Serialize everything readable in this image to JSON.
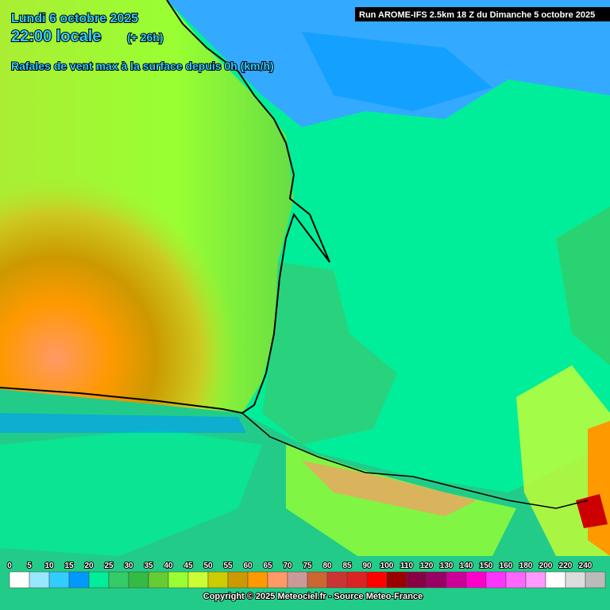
{
  "header": {
    "date": "Lundi 6 octobre 2025",
    "time": "22:00 locale",
    "lead": "(+ 26h)",
    "parameter": "Rafales de vent max à la surface depuis 0h (km/h)",
    "run": "Run AROME-IFS 2.5km 18 Z du Dimanche 5 octobre 2025"
  },
  "legend": {
    "labels": [
      0,
      5,
      10,
      15,
      20,
      25,
      30,
      35,
      40,
      45,
      50,
      55,
      60,
      65,
      70,
      75,
      80,
      85,
      90,
      100,
      110,
      120,
      130,
      140,
      150,
      160,
      180,
      200,
      220,
      240
    ],
    "colors": [
      "#ffffff",
      "#99e6ff",
      "#33ccff",
      "#0099ff",
      "#00ee99",
      "#33cc66",
      "#33bb44",
      "#66cc33",
      "#99ff33",
      "#ccff33",
      "#cccc00",
      "#cc9900",
      "#ff9900",
      "#ff9966",
      "#cc9999",
      "#cc6633",
      "#cc3333",
      "#dd2222",
      "#ff0000",
      "#990000",
      "#880044",
      "#990066",
      "#cc0099",
      "#ff00cc",
      "#ff33ff",
      "#ff66ff",
      "#ff99ff",
      "#ffffff",
      "#dddddd",
      "#bbbbbb"
    ]
  },
  "footer": {
    "copyright": "Copyright © 2025 Meteociel.fr - Source Meteo-France"
  }
}
